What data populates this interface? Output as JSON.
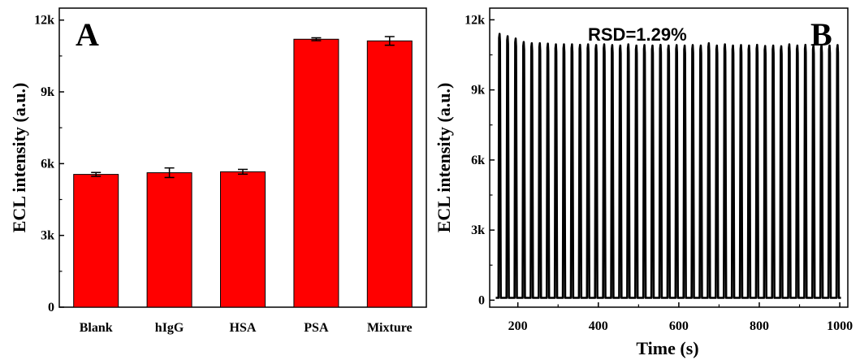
{
  "chart_data": [
    {
      "type": "bar",
      "panel_label": "A",
      "ylabel": "ECL intensity (a.u.)",
      "xlabel": "",
      "categories": [
        "Blank",
        "hIgG",
        "HSA",
        "PSA",
        "Mixture"
      ],
      "values": [
        5550,
        5620,
        5660,
        11200,
        11130
      ],
      "errors": [
        80,
        200,
        100,
        60,
        180
      ],
      "ylim": [
        0,
        12500
      ],
      "yticks": [
        0,
        3000,
        6000,
        9000,
        12000
      ],
      "ytick_labels": [
        "0",
        "3k",
        "6k",
        "9k",
        "12k"
      ],
      "bar_color": "#ff0000",
      "grid": false
    },
    {
      "type": "line",
      "panel_label": "B",
      "annotation": "RSD=1.29%",
      "xlabel": "Time (s)",
      "ylabel": "ECL intensity (a.u.)",
      "xlim": [
        130,
        1020
      ],
      "ylim": [
        -300,
        12500
      ],
      "xticks": [
        200,
        400,
        600,
        800,
        1000
      ],
      "xtick_labels": [
        "200",
        "400",
        "600",
        "800",
        "1000"
      ],
      "yticks": [
        0,
        3000,
        6000,
        9000,
        12000
      ],
      "ytick_labels": [
        "0",
        "3k",
        "6k",
        "9k",
        "12k"
      ],
      "baseline": 100,
      "peak_period_s": 20,
      "peaks": [
        {
          "x": 155,
          "y": 11400
        },
        {
          "x": 175,
          "y": 11300
        },
        {
          "x": 195,
          "y": 11200
        },
        {
          "x": 215,
          "y": 11050
        },
        {
          "x": 235,
          "y": 11000
        },
        {
          "x": 255,
          "y": 11000
        },
        {
          "x": 275,
          "y": 10980
        },
        {
          "x": 295,
          "y": 10950
        },
        {
          "x": 315,
          "y": 10950
        },
        {
          "x": 335,
          "y": 10950
        },
        {
          "x": 355,
          "y": 10930
        },
        {
          "x": 375,
          "y": 10950
        },
        {
          "x": 395,
          "y": 10920
        },
        {
          "x": 415,
          "y": 10950
        },
        {
          "x": 435,
          "y": 10920
        },
        {
          "x": 455,
          "y": 10900
        },
        {
          "x": 475,
          "y": 10950
        },
        {
          "x": 495,
          "y": 10900
        },
        {
          "x": 515,
          "y": 10920
        },
        {
          "x": 535,
          "y": 10900
        },
        {
          "x": 555,
          "y": 10930
        },
        {
          "x": 575,
          "y": 10900
        },
        {
          "x": 595,
          "y": 10920
        },
        {
          "x": 615,
          "y": 10900
        },
        {
          "x": 635,
          "y": 10920
        },
        {
          "x": 655,
          "y": 10900
        },
        {
          "x": 675,
          "y": 11000
        },
        {
          "x": 695,
          "y": 10900
        },
        {
          "x": 715,
          "y": 10950
        },
        {
          "x": 735,
          "y": 10900
        },
        {
          "x": 755,
          "y": 10920
        },
        {
          "x": 775,
          "y": 10900
        },
        {
          "x": 795,
          "y": 10930
        },
        {
          "x": 815,
          "y": 10880
        },
        {
          "x": 835,
          "y": 10900
        },
        {
          "x": 855,
          "y": 10870
        },
        {
          "x": 875,
          "y": 10950
        },
        {
          "x": 895,
          "y": 10900
        },
        {
          "x": 915,
          "y": 10930
        },
        {
          "x": 935,
          "y": 10900
        },
        {
          "x": 955,
          "y": 10920
        },
        {
          "x": 975,
          "y": 10900
        },
        {
          "x": 995,
          "y": 10920
        }
      ],
      "line_color": "#000000",
      "grid": false
    }
  ]
}
